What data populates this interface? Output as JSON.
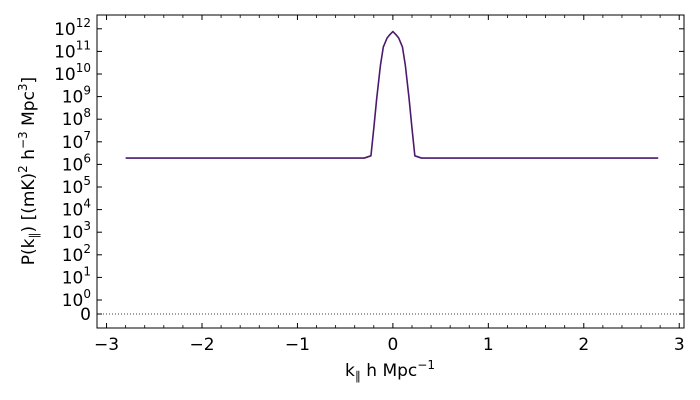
{
  "chart_data": {
    "type": "line",
    "xlabel": {
      "main": "k",
      "subscript": "∥",
      "rest": " h Mpc",
      "exponent": "−1"
    },
    "ylabel": {
      "pre": "P(k",
      "subscript": "∥",
      "mid": ") [(mK)",
      "exp1": "2",
      "mid2": " h",
      "exp2": "−3",
      "mid3": " Mpc",
      "exp3": "3",
      "post": "]"
    },
    "xlim": [
      -3.1,
      3.05
    ],
    "yscale": "symlog",
    "xticks": [
      {
        "value": -3,
        "label": "−3"
      },
      {
        "value": -2,
        "label": "−2"
      },
      {
        "value": -1,
        "label": "−1"
      },
      {
        "value": 0,
        "label": "0"
      },
      {
        "value": 1,
        "label": "1"
      },
      {
        "value": 2,
        "label": "2"
      },
      {
        "value": 3,
        "label": "3"
      }
    ],
    "yticks": [
      {
        "label": "0",
        "exponent": ""
      },
      {
        "label": "10",
        "exponent": "0"
      },
      {
        "label": "10",
        "exponent": "1"
      },
      {
        "label": "10",
        "exponent": "2"
      },
      {
        "label": "10",
        "exponent": "3"
      },
      {
        "label": "10",
        "exponent": "4"
      },
      {
        "label": "10",
        "exponent": "5"
      },
      {
        "label": "10",
        "exponent": "6"
      },
      {
        "label": "10",
        "exponent": "7"
      },
      {
        "label": "10",
        "exponent": "8"
      },
      {
        "label": "10",
        "exponent": "9"
      },
      {
        "label": "10",
        "exponent": "10"
      },
      {
        "label": "10",
        "exponent": "11"
      },
      {
        "label": "10",
        "exponent": "12"
      }
    ],
    "zero_line": {
      "y": 0,
      "style": "dotted"
    },
    "series": [
      {
        "color": "#4b1a6e",
        "x": [
          -2.8,
          -0.3,
          -0.23,
          -0.2,
          -0.17,
          -0.13,
          -0.1,
          -0.06,
          -0.03,
          0.0,
          0.03,
          0.06,
          0.1,
          0.13,
          0.17,
          0.2,
          0.23,
          0.3,
          2.78
        ],
        "log10_y": [
          6.28,
          6.28,
          6.38,
          7.6,
          8.9,
          10.4,
          11.2,
          11.6,
          11.75,
          11.88,
          11.75,
          11.6,
          11.2,
          10.4,
          8.9,
          7.6,
          6.38,
          6.28,
          6.28
        ]
      }
    ],
    "grid": false,
    "legend": "none"
  }
}
